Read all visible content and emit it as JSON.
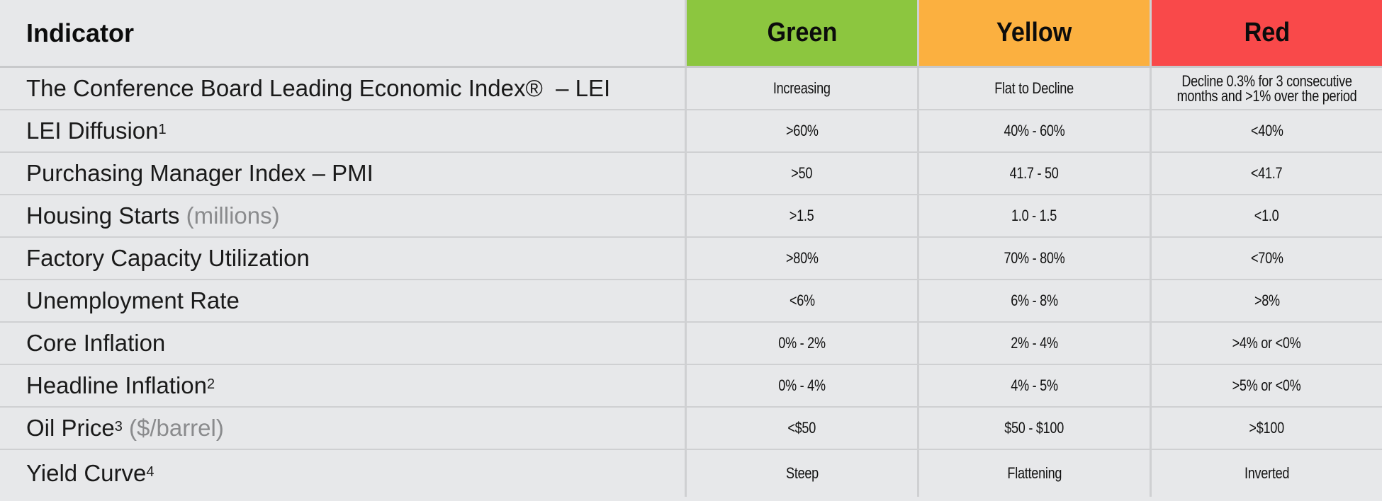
{
  "header": {
    "indicator_label": "Indicator",
    "columns": [
      {
        "label": "Green",
        "color": "#8cc63f"
      },
      {
        "label": "Yellow",
        "color": "#fbb040"
      },
      {
        "label": "Red",
        "color": "#f9494a"
      }
    ]
  },
  "rows": [
    {
      "name": "The Conference Board Leading Economic Index®  – LEI",
      "sup": "",
      "unit": "",
      "green": "Increasing",
      "yellow": "Flat to Decline",
      "red": "Decline 0.3% for 3 consecutive months and >1% over the period"
    },
    {
      "name": "LEI Diffusion",
      "sup": "1",
      "unit": "",
      "green": ">60%",
      "yellow": "40% - 60%",
      "red": "<40%"
    },
    {
      "name": "Purchasing Manager Index – PMI",
      "sup": "",
      "unit": "",
      "green": ">50",
      "yellow": "41.7 - 50",
      "red": "<41.7"
    },
    {
      "name": "Housing Starts ",
      "sup": "",
      "unit": "(millions)",
      "green": ">1.5",
      "yellow": "1.0 - 1.5",
      "red": "<1.0"
    },
    {
      "name": "Factory Capacity Utilization",
      "sup": "",
      "unit": "",
      "green": ">80%",
      "yellow": "70% - 80%",
      "red": "<70%"
    },
    {
      "name": "Unemployment Rate",
      "sup": "",
      "unit": "",
      "green": "<6%",
      "yellow": "6% - 8%",
      "red": ">8%"
    },
    {
      "name": "Core Inflation",
      "sup": "",
      "unit": "",
      "green": "0% - 2%",
      "yellow": "2% - 4%",
      "red": ">4% or <0%"
    },
    {
      "name": "Headline Inflation",
      "sup": "2",
      "unit": "",
      "green": "0% - 4%",
      "yellow": "4% - 5%",
      "red": ">5% or <0%"
    },
    {
      "name": "Oil Price",
      "sup": "3",
      "unit": " ($/barrel)",
      "green": "<$50",
      "yellow": "$50 - $100",
      "red": ">$100"
    },
    {
      "name": "Yield Curve",
      "sup": "4",
      "unit": "",
      "green": "Steep",
      "yellow": "Flattening",
      "red": "Inverted"
    }
  ]
}
